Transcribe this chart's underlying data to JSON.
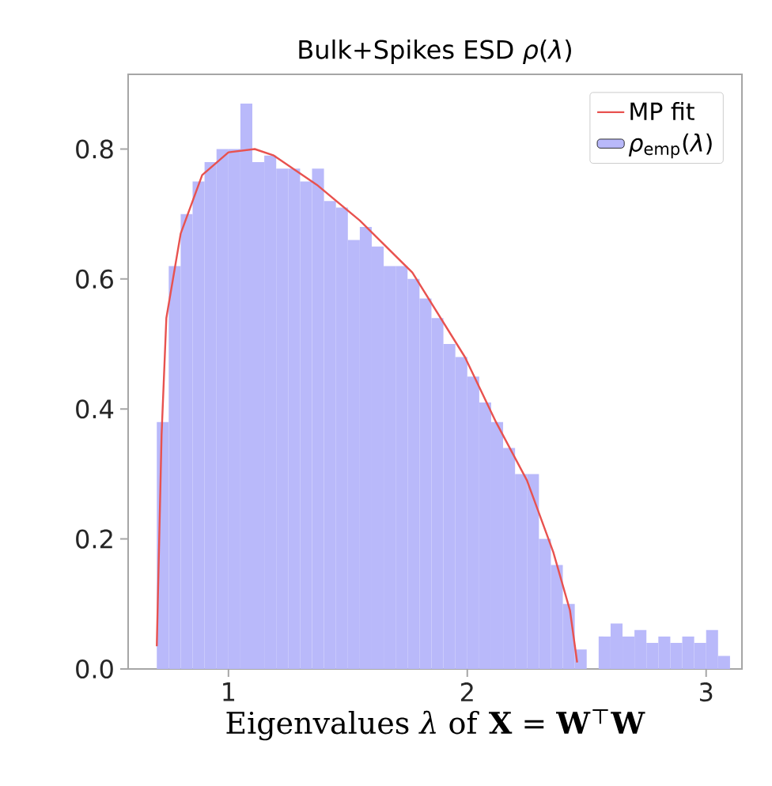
{
  "chart_data": {
    "type": "histogram",
    "title": "Bulk+Spikes ESD *ρ*(*λ*)",
    "xlabel": "Eigenvalues *λ* of **X** = **W**$^{⊤}$**W**",
    "bins": [
      0.7,
      0.75,
      0.8,
      0.85,
      0.9,
      0.95,
      1.0,
      1.05,
      1.1,
      1.15,
      1.2,
      1.25,
      1.3,
      1.35,
      1.4,
      1.45,
      1.5,
      1.55,
      1.6,
      1.65,
      1.7,
      1.75,
      1.8,
      1.85,
      1.9,
      1.95,
      2.0,
      2.05,
      2.1,
      2.15,
      2.2,
      2.25,
      2.3,
      2.35,
      2.4,
      2.45,
      2.5,
      2.55,
      2.6,
      2.65,
      2.7,
      2.75,
      2.8,
      2.85,
      2.9,
      2.95,
      3.0,
      3.05,
      3.1
    ],
    "series": [
      {
        "name": "*ρ*$_{emp}$(*λ*)",
        "color": "#b9b9fa",
        "values": [
          0.38,
          0.62,
          0.7,
          0.75,
          0.78,
          0.8,
          0.8,
          0.87,
          0.78,
          0.79,
          0.77,
          0.77,
          0.75,
          0.77,
          0.72,
          0.71,
          0.66,
          0.68,
          0.65,
          0.62,
          0.62,
          0.6,
          0.57,
          0.54,
          0.5,
          0.48,
          0.45,
          0.41,
          0.38,
          0.34,
          0.3,
          0.3,
          0.2,
          0.16,
          0.1,
          0.03,
          0,
          0.05,
          0.07,
          0.05,
          0.06,
          0.04,
          0.05,
          0.04,
          0.05,
          0.04,
          0.06,
          0.02
        ]
      },
      {
        "name": "MP fit",
        "type": "line",
        "color": "#e8524f",
        "x": [
          0.7,
          0.72,
          0.74,
          0.8,
          0.89,
          1.0,
          1.11,
          1.19,
          1.37,
          1.55,
          1.77,
          1.99,
          2.12,
          2.25,
          2.36,
          2.43,
          2.46
        ],
        "values": [
          0.035,
          0.36,
          0.54,
          0.67,
          0.76,
          0.795,
          0.8,
          0.79,
          0.745,
          0.69,
          0.61,
          0.48,
          0.38,
          0.29,
          0.18,
          0.09,
          0.01
        ]
      }
    ],
    "xlim": [
      0.58,
      3.15
    ],
    "ylim": [
      0,
      0.915
    ],
    "xticks": [
      1,
      2,
      3
    ],
    "yticks": [
      {
        "value": 0,
        "label": "0.0"
      },
      {
        "value": 0.2,
        "label": "0.2"
      },
      {
        "value": 0.4,
        "label": "0.4"
      },
      {
        "value": 0.6,
        "label": "0.6"
      },
      {
        "value": 0.8,
        "label": "0.8"
      }
    ],
    "legend": "top right"
  }
}
